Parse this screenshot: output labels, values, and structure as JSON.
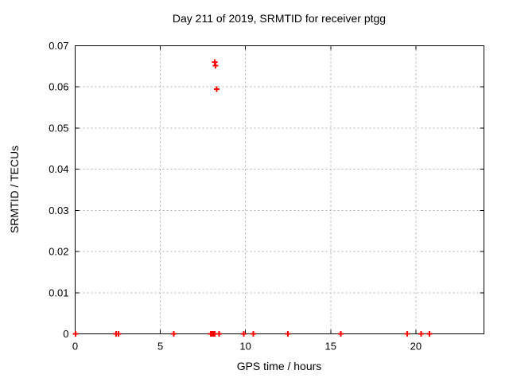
{
  "chart_data": {
    "type": "scatter",
    "title": "Day 211 of 2019, SRMTID for receiver ptgg",
    "xlabel": "GPS time / hours",
    "ylabel": "SRMTID / TECUs",
    "xlim": [
      0,
      24
    ],
    "ylim": [
      0,
      0.07
    ],
    "xticks": [
      {
        "v": 0,
        "label": "0"
      },
      {
        "v": 5,
        "label": "5"
      },
      {
        "v": 10,
        "label": "10"
      },
      {
        "v": 15,
        "label": "15"
      },
      {
        "v": 20,
        "label": "20"
      }
    ],
    "yticks": [
      {
        "v": 0,
        "label": "0"
      },
      {
        "v": 0.01,
        "label": "0.01"
      },
      {
        "v": 0.02,
        "label": "0.02"
      },
      {
        "v": 0.03,
        "label": "0.03"
      },
      {
        "v": 0.04,
        "label": "0.04"
      },
      {
        "v": 0.05,
        "label": "0.05"
      },
      {
        "v": 0.06,
        "label": "0.06"
      },
      {
        "v": 0.07,
        "label": "0.07"
      }
    ],
    "grid": {
      "show": true,
      "color": "#b0b0b0"
    },
    "border_color": "#000000",
    "legend": "none",
    "series": [
      {
        "name": "SRMTID",
        "marker": "plus",
        "color": "#ff0000",
        "points": [
          [
            0.02,
            0
          ],
          [
            2.4,
            0
          ],
          [
            2.55,
            0
          ],
          [
            5.8,
            0
          ],
          [
            7.95,
            0
          ],
          [
            8.0,
            0
          ],
          [
            8.05,
            0
          ],
          [
            8.1,
            0
          ],
          [
            8.15,
            0
          ],
          [
            8.2,
            0
          ],
          [
            8.45,
            0
          ],
          [
            9.9,
            0
          ],
          [
            10.45,
            0
          ],
          [
            12.5,
            0
          ],
          [
            15.6,
            0
          ],
          [
            19.5,
            0
          ],
          [
            20.3,
            0
          ],
          [
            20.8,
            0
          ],
          [
            8.2,
            0.066
          ],
          [
            8.25,
            0.0652
          ],
          [
            8.3,
            0.0595
          ]
        ]
      }
    ]
  }
}
